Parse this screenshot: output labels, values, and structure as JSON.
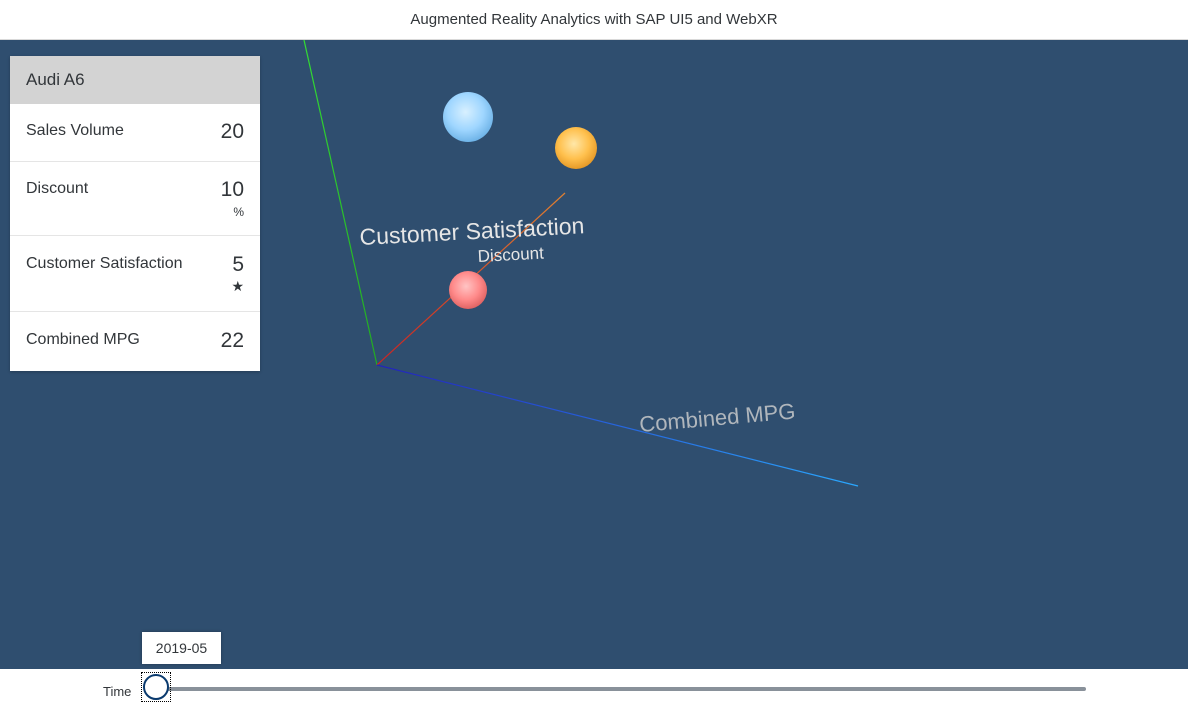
{
  "app": {
    "title": "Augmented Reality Analytics with SAP UI5 and WebXR"
  },
  "detail_card": {
    "header": "Audi A6",
    "kpis": [
      {
        "label": "Sales Volume",
        "value": "20",
        "unit": ""
      },
      {
        "label": "Discount",
        "value": "10",
        "unit": "%"
      },
      {
        "label": "Customer Satisfaction",
        "value": "5",
        "unit": "★"
      },
      {
        "label": "Combined MPG",
        "value": "22",
        "unit": ""
      }
    ]
  },
  "scene": {
    "axis_labels": {
      "y_axis": "Customer Satisfaction",
      "x_axis": "Discount",
      "z_axis": "Combined MPG"
    },
    "bubbles": [
      {
        "color": "#9fd6ff",
        "name": "bubble-blue"
      },
      {
        "color": "#ffc04d",
        "name": "bubble-orange"
      },
      {
        "color": "#ff8a8a",
        "name": "bubble-red"
      }
    ],
    "axis_colors": {
      "y": "#33cc33",
      "x": "#cc3333",
      "z": "#2233cc"
    },
    "background": "#2f4e6f"
  },
  "time_slider": {
    "label": "Time",
    "value": "2019-05",
    "position": 0
  }
}
